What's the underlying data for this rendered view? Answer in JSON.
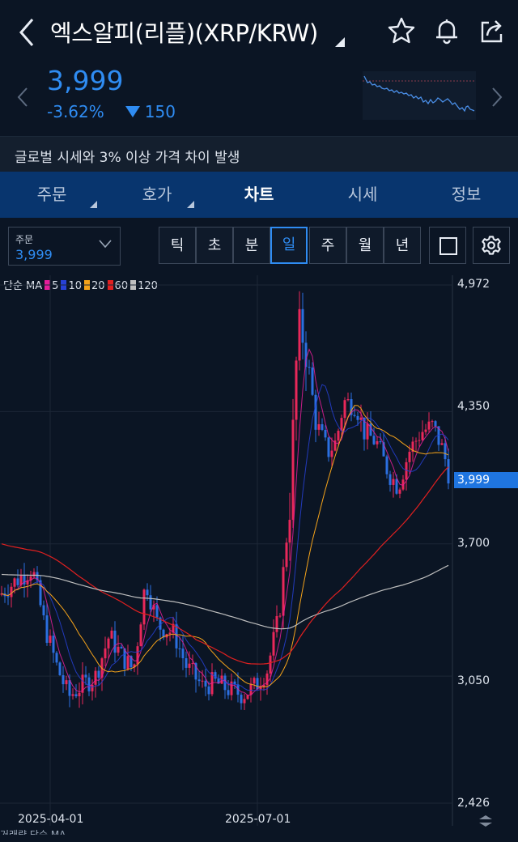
{
  "header": {
    "title": "엑스알피(리플)(XRP/KRW)",
    "icons": [
      "back-arrow-icon",
      "star-icon",
      "bell-icon",
      "share-icon"
    ]
  },
  "quote": {
    "price": "3,999",
    "change_pct": "-3.62%",
    "change_abs": "150",
    "color": "#2f8cf2"
  },
  "notice": "글로벌 시세와 3% 이상 가격 차이 발생",
  "tabs": [
    {
      "label": "주문"
    },
    {
      "label": "호가"
    },
    {
      "label": "차트",
      "active": true
    },
    {
      "label": "시세"
    },
    {
      "label": "정보"
    }
  ],
  "toolbar": {
    "order_label": "주문",
    "order_value": "3,999",
    "periods": [
      "틱",
      "초",
      "분",
      "일",
      "주",
      "월",
      "년"
    ],
    "active_period": "일"
  },
  "chart_data": {
    "type": "candlestick",
    "indicator_title": "단순 MA",
    "ma_series": [
      {
        "name": "5",
        "color": "#e61e9a"
      },
      {
        "name": "10",
        "color": "#2741d6"
      },
      {
        "name": "20",
        "color": "#f5a31a"
      },
      {
        "name": "60",
        "color": "#e02020"
      },
      {
        "name": "120",
        "color": "#bfbfbf"
      }
    ],
    "y_ticks": [
      "4,972",
      "4,350",
      "3,700",
      "3,050",
      "2,426"
    ],
    "y_tick_values": [
      4972,
      4350,
      3700,
      3050,
      2426
    ],
    "x_ticks": [
      "2025-04-01",
      "2025-07-01"
    ],
    "current_price": "3,999",
    "current_value": 3999,
    "up_color": "#e8285a",
    "down_color": "#2b6fe0"
  },
  "bottom_partial": "거래량 단순 MA"
}
